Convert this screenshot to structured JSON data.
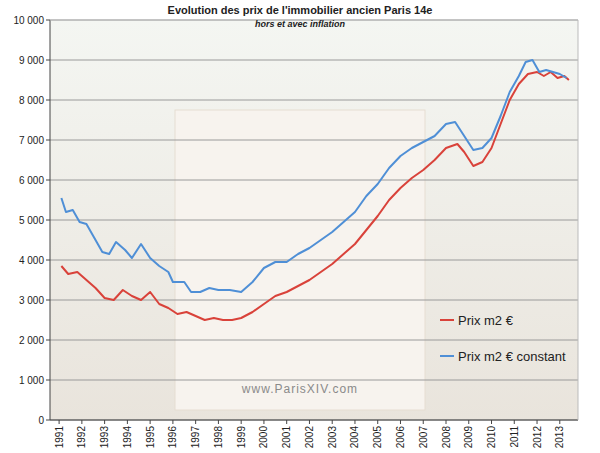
{
  "chart_data": {
    "type": "line",
    "title": "Evolution des prix de l'immobilier ancien Paris 14e",
    "subtitle": "hors et avec inflation",
    "annotations": [
      "www.ParisXIV.com"
    ],
    "xlim": [
      1990.6,
      2013.8
    ],
    "xticks": [
      1991,
      1992,
      1993,
      1994,
      1995,
      1996,
      1997,
      1998,
      1999,
      2000,
      2001,
      2002,
      2003,
      2004,
      2005,
      2006,
      2007,
      2008,
      2009,
      2010,
      2011,
      2012,
      2013
    ],
    "ylim": [
      0,
      10000
    ],
    "yticks": [
      0,
      {
        "value": 1000,
        "label": "1 000"
      },
      {
        "value": 2000,
        "label": "2 000"
      },
      {
        "value": 3000,
        "label": "3 000"
      },
      {
        "value": 4000,
        "label": "4 000"
      },
      {
        "value": 5000,
        "label": "5 000"
      },
      {
        "value": 6000,
        "label": "6 000"
      },
      {
        "value": 7000,
        "label": "7 000"
      },
      {
        "value": 8000,
        "label": "8 000"
      },
      {
        "value": 9000,
        "label": "9 000"
      },
      {
        "value": 10000,
        "label": "10 000"
      }
    ],
    "grid": true,
    "legend": "lower-right",
    "series": [
      {
        "name": "Prix m2 €",
        "color": "#d9423a",
        "x": [
          1991.1,
          1991.4,
          1991.8,
          1992.2,
          1992.6,
          1993.0,
          1993.4,
          1993.8,
          1994.2,
          1994.6,
          1995.0,
          1995.4,
          1995.8,
          1996.2,
          1996.6,
          1997.0,
          1997.4,
          1997.8,
          1998.2,
          1998.6,
          1999.0,
          1999.5,
          2000.0,
          2000.5,
          2001.0,
          2001.5,
          2002.0,
          2002.5,
          2003.0,
          2003.5,
          2004.0,
          2004.5,
          2005.0,
          2005.5,
          2006.0,
          2006.5,
          2007.0,
          2007.5,
          2008.0,
          2008.5,
          2008.8,
          2009.2,
          2009.6,
          2010.0,
          2010.4,
          2010.8,
          2011.2,
          2011.6,
          2012.0,
          2012.3,
          2012.6,
          2012.9,
          2013.2,
          2013.4
        ],
        "values": [
          3850,
          3650,
          3700,
          3500,
          3300,
          3050,
          3000,
          3250,
          3100,
          3000,
          3200,
          2900,
          2800,
          2650,
          2700,
          2600,
          2500,
          2550,
          2500,
          2500,
          2550,
          2700,
          2900,
          3100,
          3200,
          3350,
          3500,
          3700,
          3900,
          4150,
          4400,
          4750,
          5100,
          5500,
          5800,
          6050,
          6250,
          6500,
          6800,
          6900,
          6700,
          6350,
          6450,
          6800,
          7400,
          8000,
          8400,
          8650,
          8700,
          8600,
          8700,
          8550,
          8600,
          8500
        ]
      },
      {
        "name": "Prix m2 € constant",
        "color": "#4f8fd6",
        "x": [
          1991.1,
          1991.3,
          1991.6,
          1991.9,
          1992.2,
          1992.6,
          1992.9,
          1993.2,
          1993.5,
          1993.9,
          1994.2,
          1994.6,
          1995.0,
          1995.4,
          1995.8,
          1996.0,
          1996.5,
          1996.8,
          1997.2,
          1997.6,
          1998.0,
          1998.5,
          1999.0,
          1999.5,
          2000.0,
          2000.5,
          2001.0,
          2001.5,
          2002.0,
          2002.5,
          2003.0,
          2003.5,
          2004.0,
          2004.5,
          2005.0,
          2005.5,
          2006.0,
          2006.5,
          2007.0,
          2007.5,
          2008.0,
          2008.4,
          2008.8,
          2009.2,
          2009.6,
          2010.0,
          2010.4,
          2010.8,
          2011.2,
          2011.5,
          2011.8,
          2012.1,
          2012.4,
          2012.7,
          2013.0,
          2013.3
        ],
        "values": [
          5550,
          5200,
          5250,
          4950,
          4900,
          4500,
          4200,
          4150,
          4450,
          4250,
          4050,
          4400,
          4050,
          3850,
          3700,
          3450,
          3450,
          3200,
          3200,
          3300,
          3250,
          3250,
          3200,
          3450,
          3800,
          3950,
          3950,
          4150,
          4300,
          4500,
          4700,
          4950,
          5200,
          5600,
          5900,
          6300,
          6600,
          6800,
          6950,
          7100,
          7400,
          7450,
          7100,
          6750,
          6800,
          7050,
          7600,
          8200,
          8600,
          8950,
          9000,
          8700,
          8750,
          8700,
          8650,
          8550
        ]
      }
    ]
  }
}
